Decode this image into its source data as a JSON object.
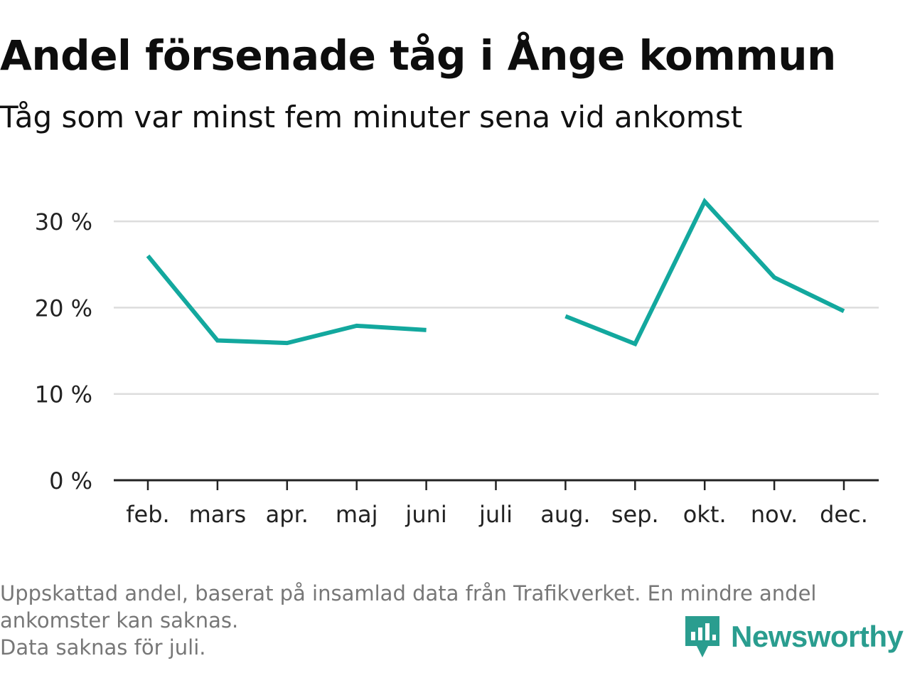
{
  "title": "Andel försenade tåg i Ånge kommun",
  "subtitle": "Tåg som var minst fem minuter sena vid ankomst",
  "footnote": {
    "line1": "Uppskattad andel, baserat på insamlad data från Trafikverket. En mindre andel",
    "line2": "ankomster kan saknas.",
    "line3": "Data saknas för juli."
  },
  "brand": {
    "name": "Newsworthy",
    "icon": "newsworthy-logo-icon"
  },
  "colors": {
    "line": "#13a89e",
    "grid": "#dddddd",
    "axis": "#222222",
    "brand": "#2a9d8f"
  },
  "chart_data": {
    "type": "line",
    "categories": [
      "feb.",
      "mars",
      "apr.",
      "maj",
      "juni",
      "juli",
      "aug.",
      "sep.",
      "okt.",
      "nov.",
      "dec."
    ],
    "series": [
      {
        "values": [
          26.0,
          16.2,
          15.9,
          17.9,
          17.4,
          null,
          19.0,
          15.8,
          32.3,
          23.5,
          19.6
        ]
      }
    ],
    "y_ticks": [
      0,
      10,
      20,
      30
    ],
    "y_tick_suffix": " %",
    "ylim": [
      0,
      30
    ],
    "grid": true,
    "xlabel": "",
    "ylabel": ""
  }
}
